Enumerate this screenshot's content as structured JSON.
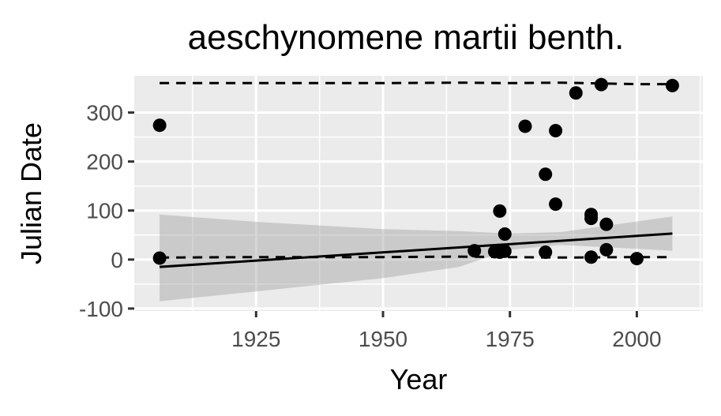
{
  "chart_data": {
    "type": "scatter",
    "title": "aeschynomene martii benth.",
    "xlabel": "Year",
    "ylabel": "Julian Date",
    "xlim": [
      1901,
      2013
    ],
    "ylim": [
      -105,
      375
    ],
    "x_ticks": [
      1925,
      1950,
      1975,
      2000
    ],
    "y_ticks": [
      -100,
      0,
      100,
      200,
      300
    ],
    "x_tick_labels": [
      "1925",
      "1950",
      "1975",
      "2000"
    ],
    "y_tick_labels": [
      "-100",
      "0",
      "100",
      "200",
      "300"
    ],
    "grid": true,
    "panel_background": "#ebebeb",
    "grid_color": "#ffffff",
    "point_color": "#000000",
    "points": [
      {
        "x": 1906,
        "y": 274
      },
      {
        "x": 1906,
        "y": 3
      },
      {
        "x": 1968,
        "y": 18
      },
      {
        "x": 1972,
        "y": 16
      },
      {
        "x": 1973,
        "y": 15
      },
      {
        "x": 1973,
        "y": 99
      },
      {
        "x": 1974,
        "y": 52
      },
      {
        "x": 1974,
        "y": 17
      },
      {
        "x": 1978,
        "y": 272
      },
      {
        "x": 1982,
        "y": 174
      },
      {
        "x": 1982,
        "y": 15
      },
      {
        "x": 1984,
        "y": 263
      },
      {
        "x": 1984,
        "y": 113
      },
      {
        "x": 1988,
        "y": 340
      },
      {
        "x": 1991,
        "y": 92
      },
      {
        "x": 1991,
        "y": 84
      },
      {
        "x": 1991,
        "y": 5
      },
      {
        "x": 1993,
        "y": 357
      },
      {
        "x": 1994,
        "y": 72
      },
      {
        "x": 1994,
        "y": 20
      },
      {
        "x": 2000,
        "y": 2
      },
      {
        "x": 2007,
        "y": 355
      }
    ],
    "trend_line": {
      "x": [
        1906,
        2007
      ],
      "y": [
        -15,
        53
      ]
    },
    "confidence_band": {
      "x": [
        1906,
        1925,
        1950,
        1965,
        1975,
        1985,
        2007
      ],
      "lower": [
        -85,
        -65,
        -38,
        -15,
        20,
        30,
        18
      ],
      "upper": [
        92,
        77,
        62,
        58,
        53,
        56,
        88
      ]
    },
    "quantile_lines": [
      {
        "style": "dashed",
        "x": [
          1906,
          1925,
          1950,
          1965,
          1975,
          1985,
          2000,
          2007
        ],
        "y": [
          360,
          360,
          360,
          361,
          360,
          361,
          358,
          358
        ]
      },
      {
        "style": "dashed",
        "x": [
          1906,
          1925,
          1950,
          1965,
          1975,
          1985,
          2000,
          2007
        ],
        "y": [
          4,
          5,
          5,
          6,
          5,
          4,
          5,
          5
        ]
      }
    ]
  }
}
